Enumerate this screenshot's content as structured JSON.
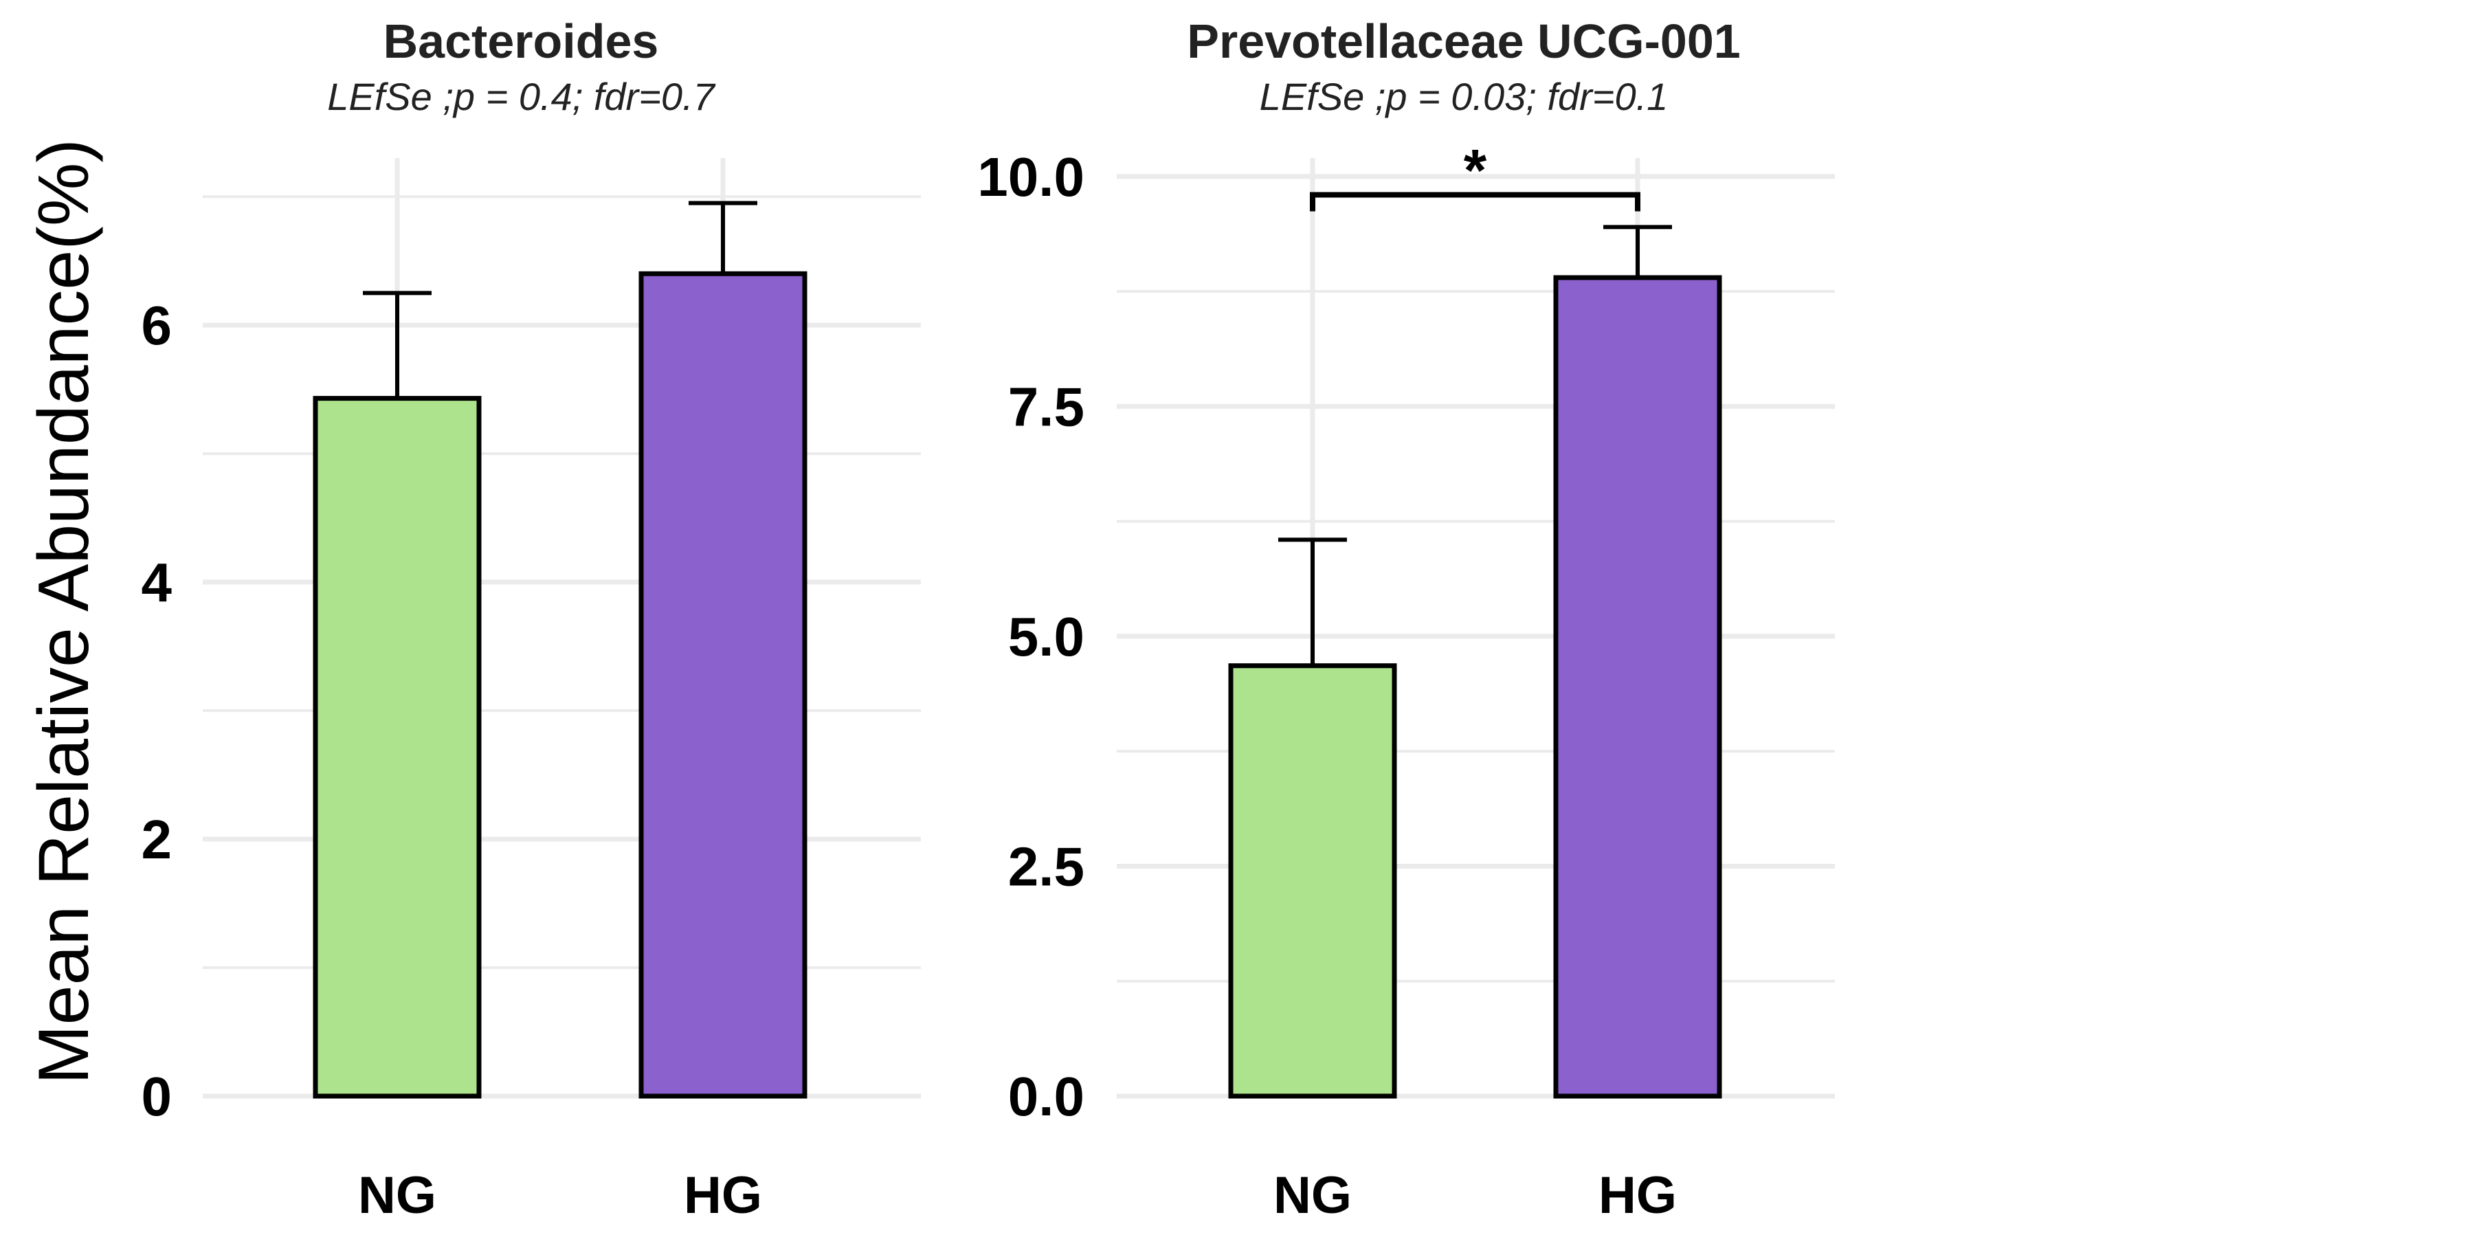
{
  "colors": {
    "NG": "#aee38e",
    "HG": "#8b61ce",
    "grid": "#ebebeb",
    "text": "#000000"
  },
  "y_axis_title": "Mean Relative Abundance(%)",
  "chart_data": [
    {
      "type": "bar",
      "title": "Bacteroides",
      "subtitle": "LEfSe ;p = 0.4; fdr=0.7",
      "categories": [
        "NG",
        "HG"
      ],
      "values": [
        5.43,
        6.4
      ],
      "error_upper": [
        6.25,
        6.95
      ],
      "ylabel": "Mean Relative Abundance(%)",
      "ylim": [
        0,
        7.3
      ],
      "y_ticks": [
        0,
        2,
        4,
        6
      ],
      "y_tick_labels": [
        "0",
        "2",
        "4",
        "6"
      ],
      "y_minor_ticks": [
        1,
        3,
        5,
        7
      ],
      "grid": true,
      "significance": null
    },
    {
      "type": "bar",
      "title": "Prevotellaceae UCG-001",
      "subtitle": "LEfSe ;p = 0.03; fdr=0.1",
      "categories": [
        "NG",
        "HG"
      ],
      "values": [
        4.68,
        8.9
      ],
      "error_upper": [
        6.05,
        9.45
      ],
      "ylabel": "",
      "ylim": [
        0,
        10.2
      ],
      "y_ticks": [
        0,
        2.5,
        5,
        7.5,
        10
      ],
      "y_tick_labels": [
        "0.0",
        "2.5",
        "5.0",
        "7.5",
        "10.0"
      ],
      "y_minor_ticks": [
        1.25,
        3.75,
        6.25,
        8.75
      ],
      "grid": true,
      "significance": {
        "label": "*",
        "from": "NG",
        "to": "HG",
        "y": 9.8
      }
    }
  ]
}
